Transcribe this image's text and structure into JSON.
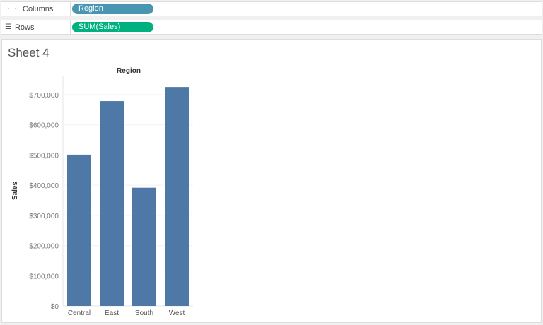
{
  "shelves": {
    "columns": {
      "label": "Columns",
      "icon": "columns-icon",
      "pill": "Region",
      "pill_color": "#4996b2"
    },
    "rows": {
      "label": "Rows",
      "icon": "rows-icon",
      "pill": "SUM(Sales)",
      "pill_color": "#00b180"
    }
  },
  "sheet": {
    "title": "Sheet 4"
  },
  "chart_data": {
    "type": "bar",
    "title": "Region",
    "xlabel": "",
    "ylabel": "Sales",
    "categories": [
      "Central",
      "East",
      "South",
      "West"
    ],
    "values": [
      501240,
      678781,
      391722,
      725458
    ],
    "ylim": [
      0,
      700000
    ],
    "yticks": [
      "$0",
      "$100,000",
      "$200,000",
      "$300,000",
      "$400,000",
      "$500,000",
      "$600,000",
      "$700,000"
    ],
    "grid": true,
    "bar_color": "#4e79a7"
  }
}
